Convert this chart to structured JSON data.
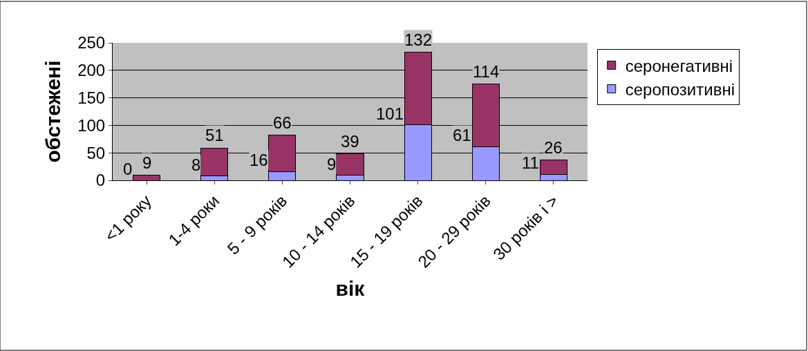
{
  "chart_data": {
    "type": "bar",
    "stacked": true,
    "xlabel": "вік",
    "ylabel": "обстежені",
    "categories": [
      "<1 року",
      "1-4 роки",
      "5 - 9 років",
      "10 - 14 років",
      "15 - 19 років",
      "20 - 29 років",
      "30 років і >"
    ],
    "series": [
      {
        "name": "серопозитивні",
        "color": "#9999ff",
        "values": [
          0,
          8,
          16,
          9,
          101,
          61,
          11
        ]
      },
      {
        "name": "серонегативні",
        "color": "#993366",
        "values": [
          9,
          51,
          66,
          39,
          132,
          114,
          26
        ]
      }
    ],
    "ylim": [
      0,
      250
    ],
    "yticks": [
      0,
      50,
      100,
      150,
      200,
      250
    ],
    "grid": "y",
    "legend": "right",
    "data_labels": true
  }
}
